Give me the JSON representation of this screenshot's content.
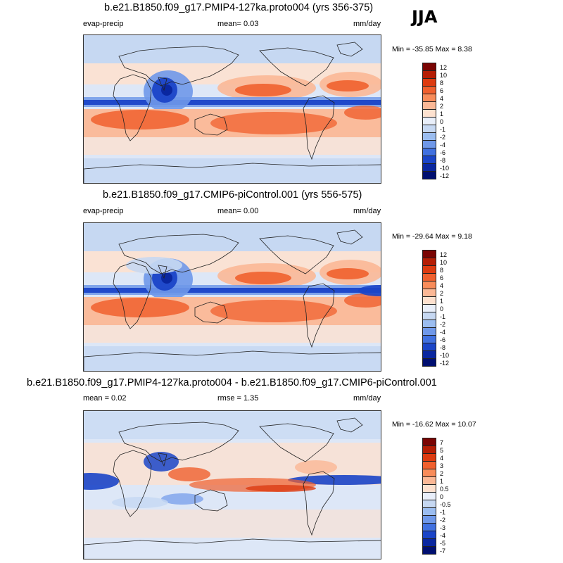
{
  "season": "JJA",
  "panels": [
    {
      "title": "b.e21.B1850.f09_g17.PMIP4-127ka.proto004 (yrs 356-375)",
      "left_label": "evap-precip",
      "center_label": "mean=   0.03",
      "right_label": "mm/day",
      "minmax": "Min = -35.85 Max =   8.38",
      "colorbar": {
        "colors": [
          "#7a0403",
          "#b51d04",
          "#dd3b10",
          "#f0602e",
          "#f88c5a",
          "#fbb896",
          "#fde1cf",
          "#e9effa",
          "#c6d8f2",
          "#9bbdf0",
          "#6f98e9",
          "#4171e0",
          "#1b45c8",
          "#0a27a0",
          "#000f70"
        ],
        "ticks": [
          "12",
          "10",
          "8",
          "6",
          "4",
          "2",
          "1",
          "0",
          "-1",
          "-2",
          "-4",
          "-6",
          "-8",
          "-10",
          "-12"
        ]
      }
    },
    {
      "title": "b.e21.B1850.f09_g17.CMIP6-piControl.001 (yrs 556-575)",
      "left_label": "evap-precip",
      "center_label": "mean=   0.00",
      "right_label": "mm/day",
      "minmax": "Min = -29.64 Max =   9.18",
      "colorbar": {
        "colors": [
          "#7a0403",
          "#b51d04",
          "#dd3b10",
          "#f0602e",
          "#f88c5a",
          "#fbb896",
          "#fde1cf",
          "#e9effa",
          "#c6d8f2",
          "#9bbdf0",
          "#6f98e9",
          "#4171e0",
          "#1b45c8",
          "#0a27a0",
          "#000f70"
        ],
        "ticks": [
          "12",
          "10",
          "8",
          "6",
          "4",
          "2",
          "1",
          "0",
          "-1",
          "-2",
          "-4",
          "-6",
          "-8",
          "-10",
          "-12"
        ]
      }
    },
    {
      "title": "b.e21.B1850.f09_g17.PMIP4-127ka.proto004 - b.e21.B1850.f09_g17.CMIP6-piControl.001",
      "left_label": "mean =   0.02",
      "center_label": "rmse =   1.35",
      "right_label": "mm/day",
      "minmax": "Min = -16.62 Max =  10.07",
      "colorbar": {
        "colors": [
          "#7a0403",
          "#b51d04",
          "#dd3b10",
          "#f0602e",
          "#f88c5a",
          "#fbb896",
          "#fde1cf",
          "#e9effa",
          "#c6d8f2",
          "#9bbdf0",
          "#6f98e9",
          "#4171e0",
          "#1b45c8",
          "#0a27a0",
          "#000f70"
        ],
        "ticks": [
          "7",
          "5",
          "4",
          "3",
          "2",
          "1",
          "0.5",
          "0",
          "-0.5",
          "-1",
          "-2",
          "-3",
          "-4",
          "-5",
          "-7"
        ]
      }
    }
  ]
}
